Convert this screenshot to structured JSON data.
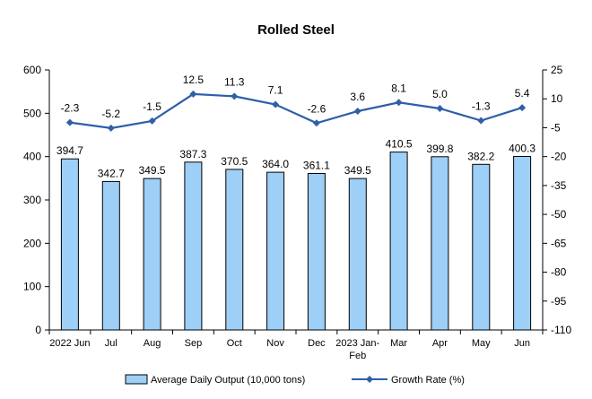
{
  "chart_data": {
    "type": "bar",
    "title": "Rolled Steel",
    "categories": [
      "2022 Jun",
      "Jul",
      "Aug",
      "Sep",
      "Oct",
      "Nov",
      "Dec",
      "2023 Jan-Feb",
      "Mar",
      "Apr",
      "May",
      "Jun"
    ],
    "series": [
      {
        "name": "Average Daily Output (10,000 tons)",
        "type": "bar",
        "axis": "left",
        "values": [
          394.7,
          342.7,
          349.5,
          387.3,
          370.5,
          364.0,
          361.1,
          349.5,
          410.5,
          399.8,
          382.2,
          400.3
        ],
        "labels": [
          "394.7",
          "342.7",
          "349.5",
          "387.3",
          "370.5",
          "364.0",
          "361.1",
          "349.5",
          "410.5",
          "399.8",
          "382.2",
          "400.3"
        ]
      },
      {
        "name": "Growth Rate (%)",
        "type": "line",
        "axis": "right",
        "values": [
          -2.3,
          -5.2,
          -1.5,
          12.5,
          11.3,
          7.1,
          -2.6,
          3.6,
          8.1,
          5.0,
          -1.3,
          5.4
        ],
        "labels": [
          "-2.3",
          "-5.2",
          "-1.5",
          "12.5",
          "11.3",
          "7.1",
          "-2.6",
          "3.6",
          "8.1",
          "5.0",
          "-1.3",
          "5.4"
        ]
      }
    ],
    "y_left": {
      "min": 0,
      "max": 600,
      "ticks": [
        "0",
        "100",
        "200",
        "300",
        "400",
        "500",
        "600"
      ]
    },
    "y_right": {
      "min": -110,
      "max": 25,
      "ticks": [
        "25",
        "10",
        "-5",
        "-20",
        "-35",
        "-50",
        "-65",
        "-80",
        "-95",
        "-110"
      ]
    },
    "grid": false,
    "legend_position": "bottom",
    "colors": {
      "bar_fill": "#9ECFF7",
      "bar_stroke": "#000000",
      "line": "#2E5FA8",
      "marker": "#2E5FA8",
      "axis": "#000000"
    }
  }
}
